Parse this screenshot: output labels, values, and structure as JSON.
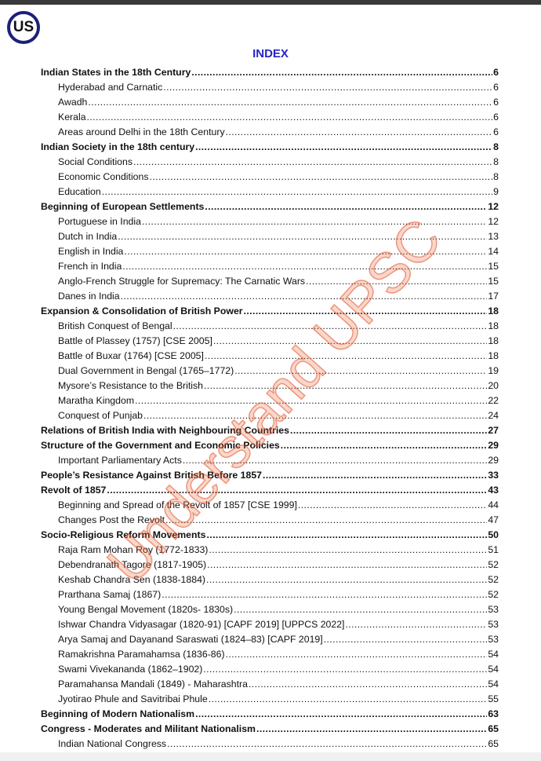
{
  "logo": {
    "text": "US"
  },
  "title": "INDEX",
  "watermark": "Understand UPSC",
  "entries": [
    {
      "t": "Indian States in the 18th Century",
      "p": "6",
      "main": true
    },
    {
      "t": "Hyderabad and Carnatic",
      "p": "6"
    },
    {
      "t": "Awadh",
      "p": "6"
    },
    {
      "t": "Kerala",
      "p": "6"
    },
    {
      "t": "Areas around Delhi in the 18th Century",
      "p": "6"
    },
    {
      "t": "Indian Society in the 18th century",
      "p": "8",
      "main": true
    },
    {
      "t": "Social Conditions",
      "p": "8"
    },
    {
      "t": "Economic Conditions",
      "p": "8"
    },
    {
      "t": "Education",
      "p": "9"
    },
    {
      "t": "Beginning of European Settlements",
      "p": "12",
      "main": true
    },
    {
      "t": "Portuguese in India",
      "p": "12"
    },
    {
      "t": "Dutch in India",
      "p": "13"
    },
    {
      "t": "English in India",
      "p": "14"
    },
    {
      "t": "French in India",
      "p": "15"
    },
    {
      "t": "Anglo-French Struggle for Supremacy: The Carnatic Wars",
      "p": "15"
    },
    {
      "t": "Danes in India",
      "p": "17"
    },
    {
      "t": "Expansion & Consolidation of British Power",
      "p": "18",
      "main": true
    },
    {
      "t": "British Conquest of Bengal",
      "p": "18"
    },
    {
      "t": "Battle of Plassey (1757) [CSE 2005]",
      "p": "18"
    },
    {
      "t": "Battle of Buxar (1764) [CSE 2005]",
      "p": "18"
    },
    {
      "t": "Dual Government in Bengal (1765–1772)",
      "p": "19"
    },
    {
      "t": "Mysore’s Resistance to the British",
      "p": "20"
    },
    {
      "t": "Maratha Kingdom",
      "p": "22"
    },
    {
      "t": "Conquest of Punjab",
      "p": "24"
    },
    {
      "t": "Relations of British India with Neighbouring Countries",
      "p": "27",
      "main": true
    },
    {
      "t": "Structure of the Government and Economic Policies",
      "p": "29",
      "main": true
    },
    {
      "t": "Important Parliamentary Acts",
      "p": "29"
    },
    {
      "t": "People’s Resistance Against British Before 1857",
      "p": "33",
      "main": true
    },
    {
      "t": "Revolt of 1857",
      "p": "43",
      "main": true
    },
    {
      "t": "Beginning and Spread of the Revolt of 1857 [CSE 1999]",
      "p": "44"
    },
    {
      "t": "Changes Post the Revolt",
      "p": "47"
    },
    {
      "t": "Socio-Religious Reform Movements",
      "p": "50",
      "main": true
    },
    {
      "t": "Raja Ram Mohan Roy (1772-1833)",
      "p": "51"
    },
    {
      "t": "Debendranath Tagore (1817-1905)",
      "p": "52"
    },
    {
      "t": "Keshab Chandra Sen (1838-1884)",
      "p": "52"
    },
    {
      "t": "Prarthana Samaj (1867)",
      "p": "52"
    },
    {
      "t": "Young Bengal Movement (1820s- 1830s)",
      "p": "53"
    },
    {
      "t": "Ishwar Chandra Vidyasagar (1820-91) [CAPF 2019] [UPPCS 2022]",
      "p": "53"
    },
    {
      "t": "Arya Samaj and Dayanand Saraswati (1824–83) [CAPF 2019]",
      "p": "53"
    },
    {
      "t": "Ramakrishna Paramahamsa (1836-86)",
      "p": "54"
    },
    {
      "t": "Swami Vivekananda (1862–1902)",
      "p": "54"
    },
    {
      "t": "Paramahansa Mandali (1849) - Maharashtra",
      "p": "54"
    },
    {
      "t": "Jyotirao Phule and Savitribai Phule",
      "p": "55"
    },
    {
      "t": "Beginning of Modern Nationalism",
      "p": "63",
      "main": true
    },
    {
      "t": "Congress - Moderates and Militant Nationalism",
      "p": "65",
      "main": true
    },
    {
      "t": "Indian National Congress",
      "p": "65"
    }
  ]
}
